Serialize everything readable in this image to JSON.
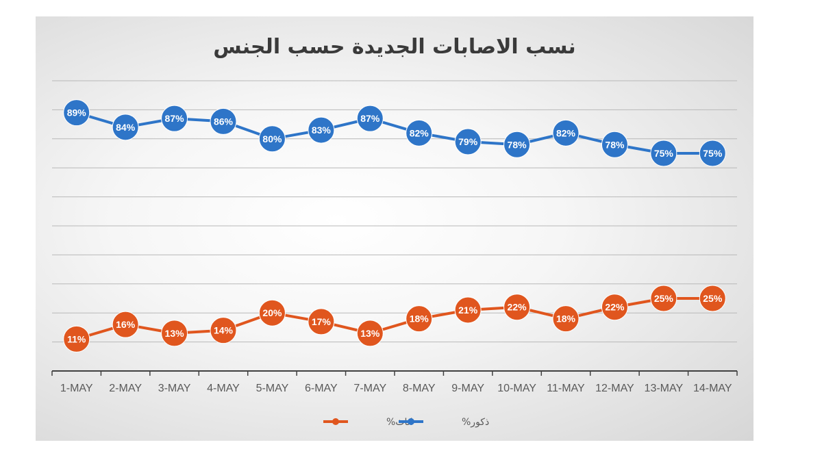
{
  "chart_data": {
    "type": "line",
    "title": "نسب الاصابات الجديدة حسب الجنس",
    "categories": [
      "1-MAY",
      "2-MAY",
      "3-MAY",
      "4-MAY",
      "5-MAY",
      "6-MAY",
      "7-MAY",
      "8-MAY",
      "9-MAY",
      "10-MAY",
      "11-MAY",
      "12-MAY",
      "13-MAY",
      "14-MAY"
    ],
    "ylim": [
      0,
      100
    ],
    "grid": true,
    "legend_position": "bottom",
    "series": [
      {
        "name": "ذكور%",
        "color": "#2E75C8",
        "values": [
          89,
          84,
          87,
          86,
          80,
          83,
          87,
          82,
          79,
          78,
          82,
          78,
          75,
          75
        ],
        "labels": [
          "89%",
          "84%",
          "87%",
          "86%",
          "80%",
          "83%",
          "87%",
          "82%",
          "79%",
          "78%",
          "82%",
          "78%",
          "75%",
          "75%"
        ]
      },
      {
        "name": "اناث%",
        "color": "#E0561E",
        "values": [
          11,
          16,
          13,
          14,
          20,
          17,
          13,
          18,
          21,
          22,
          18,
          22,
          25,
          25
        ],
        "labels": [
          "11%",
          "16%",
          "13%",
          "14%",
          "20%",
          "17%",
          "13%",
          "18%",
          "21%",
          "22%",
          "18%",
          "22%",
          "25%",
          "25%"
        ]
      }
    ]
  }
}
